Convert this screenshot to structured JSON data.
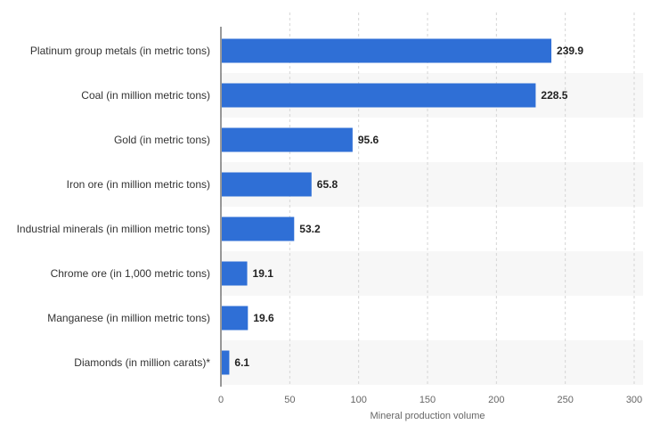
{
  "chart_data": {
    "type": "bar",
    "orientation": "horizontal",
    "title": "",
    "xlabel": "Mineral production volume",
    "ylabel": "",
    "xlim": [
      0,
      300
    ],
    "xticks": [
      0,
      50,
      100,
      150,
      200,
      250,
      300
    ],
    "grid": true,
    "categories": [
      "Platinum group metals (in metric tons)",
      "Coal (in million metric tons)",
      "Gold (in metric tons)",
      "Iron ore (in million metric tons)",
      "Industrial minerals (in million metric tons)",
      "Chrome ore (in 1,000 metric tons)",
      "Manganese (in million metric tons)",
      "Diamonds (in million carats)*"
    ],
    "values": [
      239.9,
      228.5,
      95.6,
      65.8,
      53.2,
      19.1,
      19.6,
      6.1
    ],
    "value_labels": [
      "239.9",
      "228.5",
      "95.6",
      "65.8",
      "53.2",
      "19.1",
      "19.6",
      "6.1"
    ],
    "bar_color": "#2f6fd6",
    "band_color": "#f7f7f7"
  }
}
